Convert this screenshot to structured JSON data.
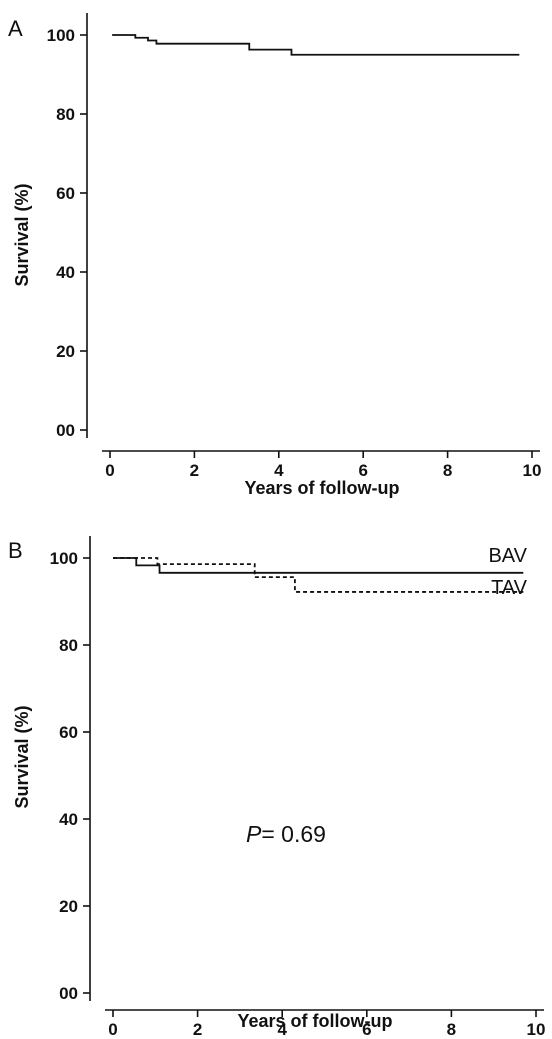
{
  "chart_data": [
    {
      "type": "line",
      "panel_label": "A",
      "xlabel": "Years of follow-up",
      "ylabel": "Survival (%)",
      "xlim": [
        0,
        10
      ],
      "ylim": [
        0,
        100
      ],
      "xticks": [
        0,
        2,
        4,
        6,
        8,
        10
      ],
      "xtick_labels": [
        "0",
        "2",
        "4",
        "6",
        "8",
        "10"
      ],
      "yticks": [
        0,
        20,
        40,
        60,
        80,
        100
      ],
      "ytick_labels": [
        "00",
        "20",
        "40",
        "60",
        "80",
        "100"
      ],
      "series": [
        {
          "style": "solid",
          "color": "#111111",
          "x": [
            0.05,
            0.6,
            0.9,
            1.1,
            3.3,
            4.3,
            9.7
          ],
          "y": [
            100,
            99.3,
            98.6,
            97.8,
            96.3,
            95.0,
            95.0
          ]
        }
      ]
    },
    {
      "type": "line",
      "panel_label": "B",
      "xlabel": "Years of follow-up",
      "ylabel": "Survival (%)",
      "xlim": [
        0,
        10
      ],
      "ylim": [
        0,
        100
      ],
      "xticks": [
        0,
        2,
        4,
        6,
        8,
        10
      ],
      "xtick_labels": [
        "0",
        "2",
        "4",
        "6",
        "8",
        "10"
      ],
      "yticks": [
        0,
        20,
        40,
        60,
        80,
        100
      ],
      "ytick_labels": [
        "00",
        "20",
        "40",
        "60",
        "80",
        "100"
      ],
      "annotation_p": "P",
      "annotation_value": "= 0.69",
      "series": [
        {
          "name": "BAV",
          "style": "solid",
          "color": "#111111",
          "x": [
            0.0,
            0.55,
            1.1,
            9.7
          ],
          "y": [
            100,
            98.3,
            96.6,
            96.6
          ]
        },
        {
          "name": "TAV",
          "style": "dashed",
          "color": "#111111",
          "x": [
            0.0,
            1.05,
            3.35,
            4.3,
            9.7
          ],
          "y": [
            100,
            98.6,
            95.6,
            92.2,
            92.2
          ]
        }
      ]
    }
  ]
}
